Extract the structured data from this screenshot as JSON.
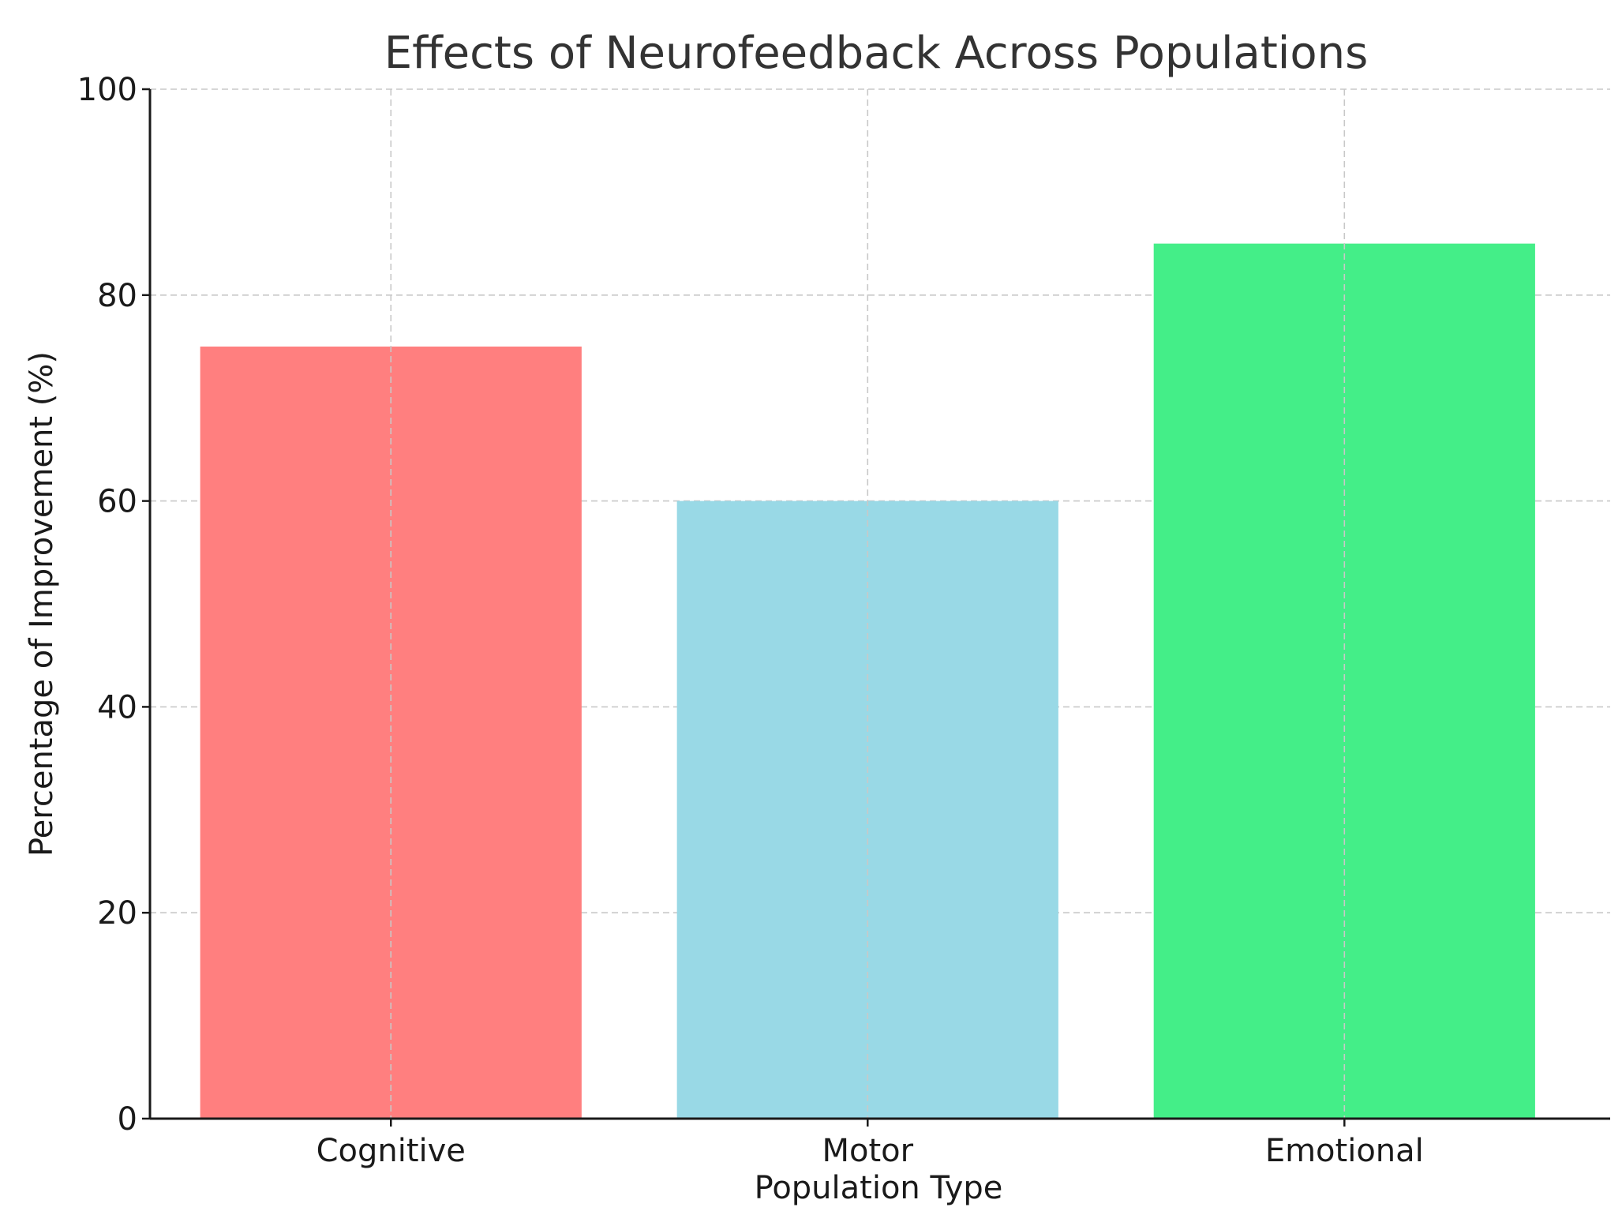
{
  "chart_data": {
    "type": "bar",
    "title": "Effects of Neurofeedback Across Populations",
    "xlabel": "Population Type",
    "ylabel": "Percentage of Improvement (%)",
    "categories": [
      "Cognitive",
      "Motor",
      "Emotional"
    ],
    "values": [
      75,
      60,
      85
    ],
    "colors": [
      "#ff7f7f",
      "#99d9e6",
      "#44ee88"
    ],
    "ylim": [
      0,
      100
    ],
    "yticks": [
      0,
      20,
      40,
      60,
      80,
      100
    ],
    "grid": true,
    "legend": "none"
  }
}
